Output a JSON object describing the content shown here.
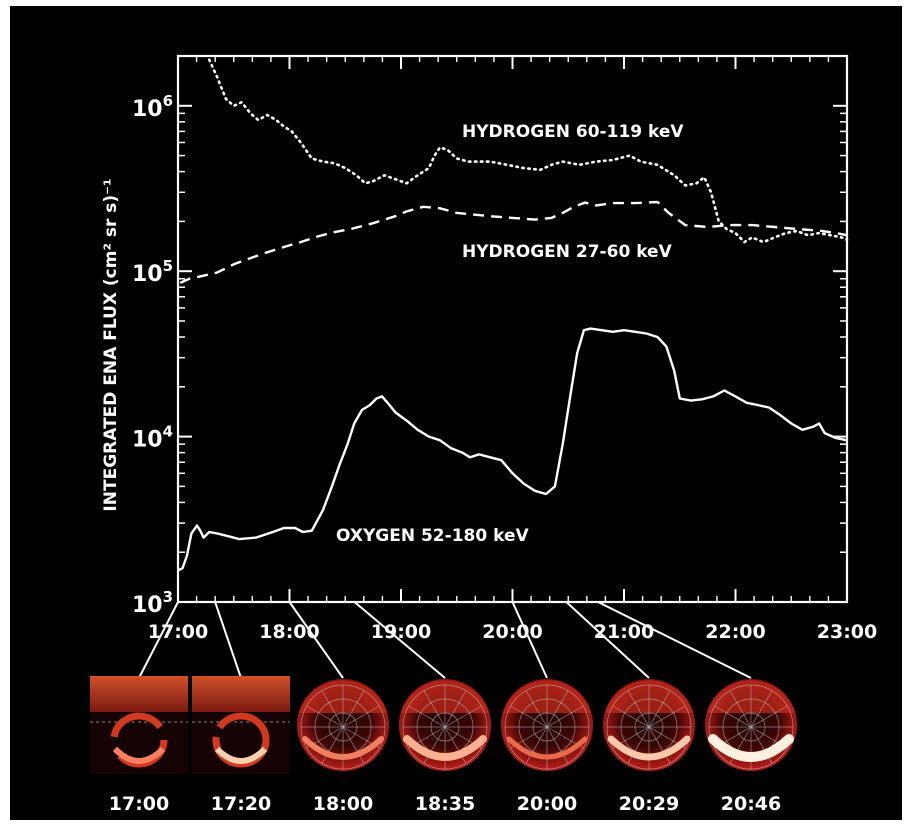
{
  "chart_data": {
    "type": "line",
    "ylabel": "INTEGRATED ENA FLUX (cm² sr s)⁻¹",
    "y_scale": "log",
    "ylim": [
      1000,
      2000000
    ],
    "y_ticks": [
      {
        "value": 1000,
        "base": "10",
        "exp": "3"
      },
      {
        "value": 10000,
        "base": "10",
        "exp": "4"
      },
      {
        "value": 100000,
        "base": "10",
        "exp": "5"
      },
      {
        "value": 1000000,
        "base": "10",
        "exp": "6"
      }
    ],
    "xlim": [
      17,
      23
    ],
    "x_ticks": [
      {
        "value": 17,
        "label": "17:00"
      },
      {
        "value": 18,
        "label": "18:00"
      },
      {
        "value": 19,
        "label": "19:00"
      },
      {
        "value": 20,
        "label": "20:00"
      },
      {
        "value": 21,
        "label": "21:00"
      },
      {
        "value": 22,
        "label": "22:00"
      },
      {
        "value": 23,
        "label": "23:00"
      }
    ],
    "series": [
      {
        "name": "HYDROGEN 60-119 keV",
        "style": "dotted",
        "points": [
          [
            17.28,
            1900000
          ],
          [
            17.35,
            1500000
          ],
          [
            17.43,
            1100000
          ],
          [
            17.5,
            1000000
          ],
          [
            17.57,
            1050000
          ],
          [
            17.65,
            900000
          ],
          [
            17.72,
            820000
          ],
          [
            17.8,
            880000
          ],
          [
            17.88,
            820000
          ],
          [
            17.95,
            750000
          ],
          [
            18.02,
            700000
          ],
          [
            18.1,
            600000
          ],
          [
            18.2,
            480000
          ],
          [
            18.3,
            460000
          ],
          [
            18.4,
            450000
          ],
          [
            18.5,
            420000
          ],
          [
            18.6,
            380000
          ],
          [
            18.68,
            340000
          ],
          [
            18.75,
            350000
          ],
          [
            18.85,
            380000
          ],
          [
            18.95,
            360000
          ],
          [
            19.05,
            340000
          ],
          [
            19.15,
            380000
          ],
          [
            19.25,
            420000
          ],
          [
            19.3,
            500000
          ],
          [
            19.35,
            560000
          ],
          [
            19.42,
            540000
          ],
          [
            19.5,
            480000
          ],
          [
            19.6,
            460000
          ],
          [
            19.8,
            460000
          ],
          [
            19.95,
            440000
          ],
          [
            20.1,
            420000
          ],
          [
            20.25,
            410000
          ],
          [
            20.35,
            440000
          ],
          [
            20.45,
            460000
          ],
          [
            20.6,
            440000
          ],
          [
            20.75,
            460000
          ],
          [
            20.9,
            470000
          ],
          [
            21.05,
            500000
          ],
          [
            21.15,
            460000
          ],
          [
            21.3,
            440000
          ],
          [
            21.45,
            380000
          ],
          [
            21.55,
            330000
          ],
          [
            21.65,
            340000
          ],
          [
            21.72,
            370000
          ],
          [
            21.78,
            300000
          ],
          [
            21.85,
            200000
          ],
          [
            21.92,
            180000
          ],
          [
            22.0,
            170000
          ],
          [
            22.08,
            150000
          ],
          [
            22.15,
            160000
          ],
          [
            22.25,
            150000
          ],
          [
            22.35,
            160000
          ],
          [
            22.45,
            170000
          ],
          [
            22.55,
            175000
          ],
          [
            22.65,
            165000
          ],
          [
            22.75,
            170000
          ],
          [
            22.85,
            165000
          ],
          [
            22.95,
            160000
          ],
          [
            23.0,
            155000
          ]
        ]
      },
      {
        "name": "HYDROGEN 27-60 keV",
        "style": "dashed",
        "points": [
          [
            17.02,
            85000
          ],
          [
            17.1,
            90000
          ],
          [
            17.2,
            93000
          ],
          [
            17.35,
            98000
          ],
          [
            17.5,
            110000
          ],
          [
            17.65,
            120000
          ],
          [
            17.8,
            130000
          ],
          [
            17.95,
            140000
          ],
          [
            18.1,
            150000
          ],
          [
            18.25,
            162000
          ],
          [
            18.4,
            172000
          ],
          [
            18.55,
            180000
          ],
          [
            18.75,
            195000
          ],
          [
            18.95,
            215000
          ],
          [
            19.05,
            230000
          ],
          [
            19.2,
            245000
          ],
          [
            19.35,
            240000
          ],
          [
            19.5,
            225000
          ],
          [
            19.65,
            220000
          ],
          [
            19.8,
            215000
          ],
          [
            20.0,
            210000
          ],
          [
            20.2,
            205000
          ],
          [
            20.35,
            210000
          ],
          [
            20.45,
            225000
          ],
          [
            20.55,
            245000
          ],
          [
            20.65,
            260000
          ],
          [
            20.75,
            250000
          ],
          [
            20.9,
            258000
          ],
          [
            21.1,
            258000
          ],
          [
            21.3,
            262000
          ],
          [
            21.4,
            225000
          ],
          [
            21.55,
            190000
          ],
          [
            21.75,
            185000
          ],
          [
            21.95,
            190000
          ],
          [
            22.15,
            190000
          ],
          [
            22.35,
            185000
          ],
          [
            22.55,
            180000
          ],
          [
            22.75,
            176000
          ],
          [
            22.9,
            170000
          ],
          [
            23.0,
            165000
          ]
        ]
      },
      {
        "name": "OXYGEN 52-180 keV",
        "style": "solid",
        "points": [
          [
            17.0,
            1550
          ],
          [
            17.04,
            1600
          ],
          [
            17.08,
            1900
          ],
          [
            17.12,
            2600
          ],
          [
            17.17,
            2900
          ],
          [
            17.2,
            2700
          ],
          [
            17.23,
            2450
          ],
          [
            17.28,
            2650
          ],
          [
            17.35,
            2600
          ],
          [
            17.45,
            2500
          ],
          [
            17.55,
            2400
          ],
          [
            17.7,
            2450
          ],
          [
            17.85,
            2650
          ],
          [
            17.95,
            2800
          ],
          [
            18.05,
            2800
          ],
          [
            18.12,
            2650
          ],
          [
            18.2,
            2700
          ],
          [
            18.3,
            3600
          ],
          [
            18.38,
            5000
          ],
          [
            18.45,
            6800
          ],
          [
            18.52,
            9000
          ],
          [
            18.58,
            12000
          ],
          [
            18.65,
            14500
          ],
          [
            18.72,
            15500
          ],
          [
            18.78,
            17000
          ],
          [
            18.83,
            17500
          ],
          [
            18.88,
            16000
          ],
          [
            18.95,
            14000
          ],
          [
            19.05,
            12500
          ],
          [
            19.15,
            11000
          ],
          [
            19.25,
            10000
          ],
          [
            19.35,
            9500
          ],
          [
            19.45,
            8500
          ],
          [
            19.55,
            8000
          ],
          [
            19.62,
            7500
          ],
          [
            19.7,
            7800
          ],
          [
            19.8,
            7500
          ],
          [
            19.9,
            7200
          ],
          [
            20.0,
            6000
          ],
          [
            20.1,
            5200
          ],
          [
            20.2,
            4700
          ],
          [
            20.3,
            4500
          ],
          [
            20.38,
            5000
          ],
          [
            20.45,
            9000
          ],
          [
            20.52,
            18000
          ],
          [
            20.58,
            32000
          ],
          [
            20.64,
            44000
          ],
          [
            20.7,
            45000
          ],
          [
            20.8,
            44000
          ],
          [
            20.9,
            43000
          ],
          [
            21.0,
            44000
          ],
          [
            21.1,
            43000
          ],
          [
            21.2,
            42000
          ],
          [
            21.3,
            40000
          ],
          [
            21.38,
            35000
          ],
          [
            21.45,
            25000
          ],
          [
            21.5,
            17000
          ],
          [
            21.6,
            16500
          ],
          [
            21.7,
            16800
          ],
          [
            21.8,
            17500
          ],
          [
            21.9,
            19000
          ],
          [
            22.0,
            17500
          ],
          [
            22.1,
            16000
          ],
          [
            22.2,
            15500
          ],
          [
            22.3,
            15000
          ],
          [
            22.4,
            13500
          ],
          [
            22.5,
            12000
          ],
          [
            22.6,
            11000
          ],
          [
            22.7,
            11500
          ],
          [
            22.75,
            12000
          ],
          [
            22.8,
            10500
          ],
          [
            22.9,
            9800
          ],
          [
            23.0,
            9500
          ]
        ]
      }
    ]
  },
  "images": [
    {
      "label": "17:00",
      "time": 17.0,
      "kind": "frame"
    },
    {
      "label": "17:20",
      "time": 17.333,
      "kind": "frame"
    },
    {
      "label": "18:00",
      "time": 18.0,
      "kind": "disk"
    },
    {
      "label": "18:35",
      "time": 18.583,
      "kind": "disk"
    },
    {
      "label": "20:00",
      "time": 20.0,
      "kind": "disk"
    },
    {
      "label": "20:29",
      "time": 20.483,
      "kind": "disk"
    },
    {
      "label": "20:46",
      "time": 20.767,
      "kind": "disk"
    }
  ],
  "colors": {
    "background": "#000000",
    "ink": "#ffffff",
    "image_red": "#c0201a"
  }
}
